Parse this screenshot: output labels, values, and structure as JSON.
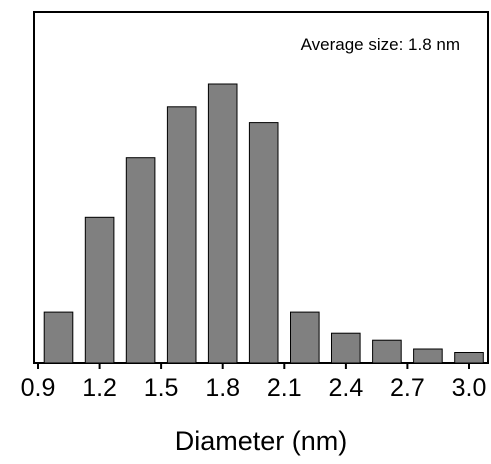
{
  "chart_data": {
    "type": "bar",
    "annotation": "Average size: 1.8 nm",
    "title": "",
    "xlabel": "Diameter (nm)",
    "ylabel": "",
    "xlim": [
      0.9,
      3.0
    ],
    "ylim": [
      0,
      100
    ],
    "x_ticks": [
      "0.9",
      "1.2",
      "1.5",
      "1.8",
      "2.1",
      "2.4",
      "2.7",
      "3.0"
    ],
    "bin_width": 0.15,
    "x": [
      1.0,
      1.2,
      1.4,
      1.6,
      1.8,
      2.0,
      2.2,
      2.4,
      2.6,
      2.8,
      3.0
    ],
    "values": [
      14.5,
      41.5,
      58.5,
      73.0,
      79.5,
      68.5,
      14.5,
      8.5,
      6.5,
      4.0,
      3.0
    ],
    "colors": {
      "bar_fill": "#808080",
      "bar_stroke": "#000000",
      "axis": "#000000"
    },
    "grid": false,
    "legend": "none"
  }
}
